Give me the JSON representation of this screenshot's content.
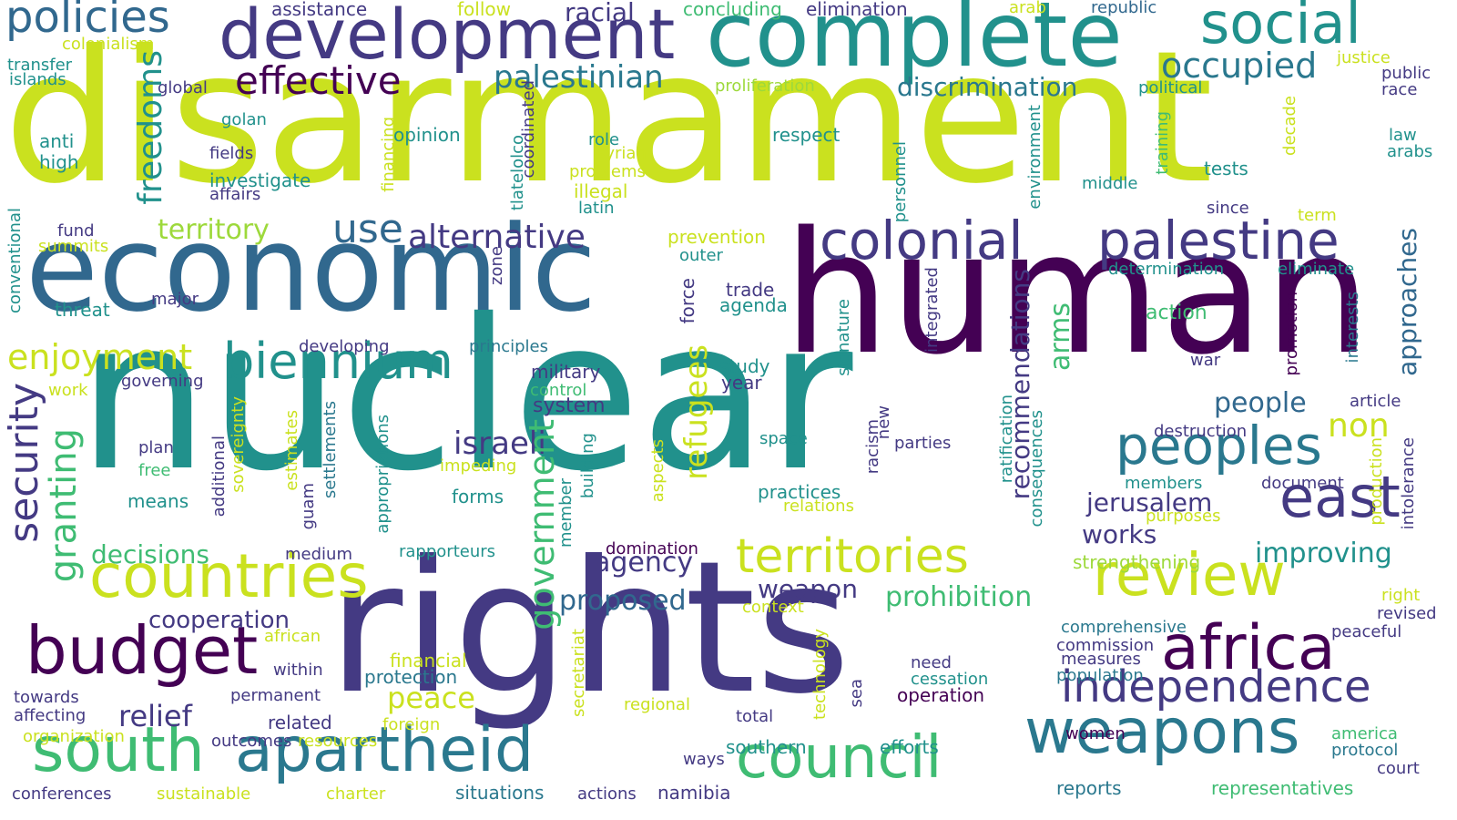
{
  "palette": {
    "y": "#cae11f",
    "g": "#3fbc73",
    "t": "#21918c",
    "b": "#31688e",
    "i": "#443a83",
    "p": "#440154",
    "lg": "#9dd93b",
    "c": "#2a788e"
  },
  "words": [
    {
      "text": "disarmament",
      "color": "y",
      "vertical": false
    },
    {
      "text": "nuclear",
      "color": "t",
      "vertical": false
    },
    {
      "text": "rights",
      "color": "i",
      "vertical": false
    },
    {
      "text": "human",
      "color": "p",
      "vertical": false
    },
    {
      "text": "economic",
      "color": "b",
      "vertical": false
    },
    {
      "text": "complete",
      "color": "t",
      "vertical": false
    },
    {
      "text": "development",
      "color": "i",
      "vertical": false
    },
    {
      "text": "social",
      "color": "t",
      "vertical": false
    },
    {
      "text": "policies",
      "color": "b",
      "vertical": false
    },
    {
      "text": "colonial",
      "color": "i",
      "vertical": false
    },
    {
      "text": "palestine",
      "color": "i",
      "vertical": false
    },
    {
      "text": "countries",
      "color": "y",
      "vertical": false
    },
    {
      "text": "biennium",
      "color": "t",
      "vertical": false
    },
    {
      "text": "peoples",
      "color": "c",
      "vertical": false
    },
    {
      "text": "east",
      "color": "i",
      "vertical": false
    },
    {
      "text": "africa",
      "color": "p",
      "vertical": false
    },
    {
      "text": "review",
      "color": "y",
      "vertical": false
    },
    {
      "text": "budget",
      "color": "p",
      "vertical": false
    },
    {
      "text": "south",
      "color": "g",
      "vertical": false
    },
    {
      "text": "apartheid",
      "color": "c",
      "vertical": false
    },
    {
      "text": "council",
      "color": "g",
      "vertical": false
    },
    {
      "text": "weapons",
      "color": "c",
      "vertical": false
    },
    {
      "text": "independence",
      "color": "i",
      "vertical": false
    },
    {
      "text": "territories",
      "color": "y",
      "vertical": false
    },
    {
      "text": "effective",
      "color": "p",
      "vertical": false
    },
    {
      "text": "occupied",
      "color": "c",
      "vertical": false
    },
    {
      "text": "palestinian",
      "color": "c",
      "vertical": false
    },
    {
      "text": "enjoyment",
      "color": "y",
      "vertical": false
    },
    {
      "text": "use",
      "color": "b",
      "vertical": false
    },
    {
      "text": "alternative",
      "color": "i",
      "vertical": false
    },
    {
      "text": "territory",
      "color": "lg",
      "vertical": false
    },
    {
      "text": "discrimination",
      "color": "c",
      "vertical": false
    },
    {
      "text": "racial",
      "color": "i",
      "vertical": false
    },
    {
      "text": "israeli",
      "color": "i",
      "vertical": false
    },
    {
      "text": "people",
      "color": "b",
      "vertical": false
    },
    {
      "text": "non",
      "color": "y",
      "vertical": false
    },
    {
      "text": "jerusalem",
      "color": "i",
      "vertical": false
    },
    {
      "text": "works",
      "color": "i",
      "vertical": false
    },
    {
      "text": "improving",
      "color": "t",
      "vertical": false
    },
    {
      "text": "decisions",
      "color": "g",
      "vertical": false
    },
    {
      "text": "agency",
      "color": "i",
      "vertical": false
    },
    {
      "text": "proposed",
      "color": "b",
      "vertical": false
    },
    {
      "text": "prohibition",
      "color": "g",
      "vertical": false
    },
    {
      "text": "weapon",
      "color": "i",
      "vertical": false
    },
    {
      "text": "cooperation",
      "color": "i",
      "vertical": false
    },
    {
      "text": "relief",
      "color": "i",
      "vertical": false
    },
    {
      "text": "peace",
      "color": "y",
      "vertical": false
    },
    {
      "text": "military",
      "color": "i",
      "vertical": false
    },
    {
      "text": "system",
      "color": "i",
      "vertical": false
    },
    {
      "text": "assistance",
      "color": "i",
      "vertical": false
    },
    {
      "text": "follow",
      "color": "y",
      "vertical": false
    },
    {
      "text": "concluding",
      "color": "g",
      "vertical": false
    },
    {
      "text": "elimination",
      "color": "i",
      "vertical": false
    },
    {
      "text": "arab",
      "color": "y",
      "vertical": false
    },
    {
      "text": "republic",
      "color": "b",
      "vertical": false
    },
    {
      "text": "colonialism",
      "color": "y",
      "vertical": false
    },
    {
      "text": "transfer",
      "color": "t",
      "vertical": false
    },
    {
      "text": "islands",
      "color": "t",
      "vertical": false
    },
    {
      "text": "justice",
      "color": "y",
      "vertical": false
    },
    {
      "text": "public",
      "color": "i",
      "vertical": false
    },
    {
      "text": "race",
      "color": "i",
      "vertical": false
    },
    {
      "text": "political",
      "color": "t",
      "vertical": false
    },
    {
      "text": "global",
      "color": "i",
      "vertical": false
    },
    {
      "text": "proliferation",
      "color": "lg",
      "vertical": false
    },
    {
      "text": "golan",
      "color": "t",
      "vertical": false
    },
    {
      "text": "anti",
      "color": "t",
      "vertical": false
    },
    {
      "text": "high",
      "color": "t",
      "vertical": false
    },
    {
      "text": "fields",
      "color": "i",
      "vertical": false
    },
    {
      "text": "investigate",
      "color": "t",
      "vertical": false
    },
    {
      "text": "affairs",
      "color": "i",
      "vertical": false
    },
    {
      "text": "opinion",
      "color": "t",
      "vertical": false
    },
    {
      "text": "role",
      "color": "t",
      "vertical": false
    },
    {
      "text": "syrian",
      "color": "y",
      "vertical": false
    },
    {
      "text": "problems",
      "color": "y",
      "vertical": false
    },
    {
      "text": "illegal",
      "color": "y",
      "vertical": false
    },
    {
      "text": "latin",
      "color": "t",
      "vertical": false
    },
    {
      "text": "respect",
      "color": "t",
      "vertical": false
    },
    {
      "text": "middle",
      "color": "t",
      "vertical": false
    },
    {
      "text": "tests",
      "color": "t",
      "vertical": false
    },
    {
      "text": "law",
      "color": "t",
      "vertical": false
    },
    {
      "text": "arabs",
      "color": "t",
      "vertical": false
    },
    {
      "text": "since",
      "color": "i",
      "vertical": false
    },
    {
      "text": "term",
      "color": "y",
      "vertical": false
    },
    {
      "text": "fund",
      "color": "i",
      "vertical": false
    },
    {
      "text": "summits",
      "color": "y",
      "vertical": false
    },
    {
      "text": "prevention",
      "color": "y",
      "vertical": false
    },
    {
      "text": "outer",
      "color": "t",
      "vertical": false
    },
    {
      "text": "determination",
      "color": "t",
      "vertical": false
    },
    {
      "text": "eliminate",
      "color": "t",
      "vertical": false
    },
    {
      "text": "threat",
      "color": "t",
      "vertical": false
    },
    {
      "text": "major",
      "color": "i",
      "vertical": false
    },
    {
      "text": "trade",
      "color": "i",
      "vertical": false
    },
    {
      "text": "agenda",
      "color": "t",
      "vertical": false
    },
    {
      "text": "action",
      "color": "g",
      "vertical": false
    },
    {
      "text": "developing",
      "color": "i",
      "vertical": false
    },
    {
      "text": "principles",
      "color": "c",
      "vertical": false
    },
    {
      "text": "study",
      "color": "t",
      "vertical": false
    },
    {
      "text": "year",
      "color": "i",
      "vertical": false
    },
    {
      "text": "war",
      "color": "i",
      "vertical": false
    },
    {
      "text": "article",
      "color": "i",
      "vertical": false
    },
    {
      "text": "governing",
      "color": "i",
      "vertical": false
    },
    {
      "text": "work",
      "color": "y",
      "vertical": false
    },
    {
      "text": "control",
      "color": "g",
      "vertical": false
    },
    {
      "text": "destruction",
      "color": "i",
      "vertical": false
    },
    {
      "text": "space",
      "color": "t",
      "vertical": false
    },
    {
      "text": "parties",
      "color": "i",
      "vertical": false
    },
    {
      "text": "plan",
      "color": "i",
      "vertical": false
    },
    {
      "text": "free",
      "color": "g",
      "vertical": false
    },
    {
      "text": "means",
      "color": "t",
      "vertical": false
    },
    {
      "text": "impeding",
      "color": "y",
      "vertical": false
    },
    {
      "text": "forms",
      "color": "t",
      "vertical": false
    },
    {
      "text": "practices",
      "color": "t",
      "vertical": false
    },
    {
      "text": "relations",
      "color": "y",
      "vertical": false
    },
    {
      "text": "members",
      "color": "t",
      "vertical": false
    },
    {
      "text": "document",
      "color": "i",
      "vertical": false
    },
    {
      "text": "purposes",
      "color": "y",
      "vertical": false
    },
    {
      "text": "medium",
      "color": "i",
      "vertical": false
    },
    {
      "text": "rapporteurs",
      "color": "t",
      "vertical": false
    },
    {
      "text": "domination",
      "color": "p",
      "vertical": false
    },
    {
      "text": "strengthening",
      "color": "lg",
      "vertical": false
    },
    {
      "text": "context",
      "color": "y",
      "vertical": false
    },
    {
      "text": "right",
      "color": "y",
      "vertical": false
    },
    {
      "text": "revised",
      "color": "i",
      "vertical": false
    },
    {
      "text": "african",
      "color": "y",
      "vertical": false
    },
    {
      "text": "comprehensive",
      "color": "c",
      "vertical": false
    },
    {
      "text": "commission",
      "color": "i",
      "vertical": false
    },
    {
      "text": "peaceful",
      "color": "i",
      "vertical": false
    },
    {
      "text": "need",
      "color": "i",
      "vertical": false
    },
    {
      "text": "measures",
      "color": "i",
      "vertical": false
    },
    {
      "text": "financial",
      "color": "y",
      "vertical": false
    },
    {
      "text": "within",
      "color": "i",
      "vertical": false
    },
    {
      "text": "protection",
      "color": "c",
      "vertical": false
    },
    {
      "text": "cessation",
      "color": "t",
      "vertical": false
    },
    {
      "text": "population",
      "color": "c",
      "vertical": false
    },
    {
      "text": "operation",
      "color": "p",
      "vertical": false
    },
    {
      "text": "towards",
      "color": "i",
      "vertical": false
    },
    {
      "text": "permanent",
      "color": "i",
      "vertical": false
    },
    {
      "text": "regional",
      "color": "y",
      "vertical": false
    },
    {
      "text": "affecting",
      "color": "i",
      "vertical": false
    },
    {
      "text": "related",
      "color": "i",
      "vertical": false
    },
    {
      "text": "total",
      "color": "i",
      "vertical": false
    },
    {
      "text": "foreign",
      "color": "y",
      "vertical": false
    },
    {
      "text": "organization",
      "color": "y",
      "vertical": false
    },
    {
      "text": "outcomes",
      "color": "i",
      "vertical": false
    },
    {
      "text": "resources",
      "color": "y",
      "vertical": false
    },
    {
      "text": "southern",
      "color": "t",
      "vertical": false
    },
    {
      "text": "efforts",
      "color": "t",
      "vertical": false
    },
    {
      "text": "women",
      "color": "p",
      "vertical": false
    },
    {
      "text": "america",
      "color": "g",
      "vertical": false
    },
    {
      "text": "protocol",
      "color": "c",
      "vertical": false
    },
    {
      "text": "court",
      "color": "i",
      "vertical": false
    },
    {
      "text": "ways",
      "color": "i",
      "vertical": false
    },
    {
      "text": "conferences",
      "color": "i",
      "vertical": false
    },
    {
      "text": "sustainable",
      "color": "y",
      "vertical": false
    },
    {
      "text": "charter",
      "color": "y",
      "vertical": false
    },
    {
      "text": "situations",
      "color": "c",
      "vertical": false
    },
    {
      "text": "actions",
      "color": "i",
      "vertical": false
    },
    {
      "text": "namibia",
      "color": "i",
      "vertical": false
    },
    {
      "text": "reports",
      "color": "c",
      "vertical": false
    },
    {
      "text": "representatives",
      "color": "g",
      "vertical": false
    },
    {
      "text": "freedoms",
      "color": "t",
      "vertical": true
    },
    {
      "text": "security",
      "color": "i",
      "vertical": true
    },
    {
      "text": "granting",
      "color": "g",
      "vertical": true
    },
    {
      "text": "government",
      "color": "g",
      "vertical": true
    },
    {
      "text": "refugees",
      "color": "y",
      "vertical": true
    },
    {
      "text": "recommendations",
      "color": "i",
      "vertical": true
    },
    {
      "text": "arms",
      "color": "g",
      "vertical": true
    },
    {
      "text": "approaches",
      "color": "b",
      "vertical": true
    },
    {
      "text": "conventional",
      "color": "t",
      "vertical": true
    },
    {
      "text": "financing",
      "color": "y",
      "vertical": true
    },
    {
      "text": "coordinated",
      "color": "i",
      "vertical": true
    },
    {
      "text": "tlatelolco",
      "color": "t",
      "vertical": true
    },
    {
      "text": "personnel",
      "color": "t",
      "vertical": true
    },
    {
      "text": "environment",
      "color": "t",
      "vertical": true
    },
    {
      "text": "training",
      "color": "g",
      "vertical": true
    },
    {
      "text": "decade",
      "color": "y",
      "vertical": true
    },
    {
      "text": "zone",
      "color": "i",
      "vertical": true
    },
    {
      "text": "force",
      "color": "i",
      "vertical": true
    },
    {
      "text": "integrated",
      "color": "i",
      "vertical": true
    },
    {
      "text": "signature",
      "color": "t",
      "vertical": true
    },
    {
      "text": "promotion",
      "color": "p",
      "vertical": true
    },
    {
      "text": "interests",
      "color": "c",
      "vertical": true
    },
    {
      "text": "sovereignty",
      "color": "y",
      "vertical": true
    },
    {
      "text": "estimates",
      "color": "y",
      "vertical": true
    },
    {
      "text": "settlements",
      "color": "c",
      "vertical": true
    },
    {
      "text": "additional",
      "color": "i",
      "vertical": true
    },
    {
      "text": "guam",
      "color": "i",
      "vertical": true
    },
    {
      "text": "appropriations",
      "color": "t",
      "vertical": true
    },
    {
      "text": "building",
      "color": "t",
      "vertical": true
    },
    {
      "text": "member",
      "color": "t",
      "vertical": true
    },
    {
      "text": "aspects",
      "color": "y",
      "vertical": true
    },
    {
      "text": "racism",
      "color": "i",
      "vertical": true
    },
    {
      "text": "new",
      "color": "i",
      "vertical": true
    },
    {
      "text": "ratification",
      "color": "t",
      "vertical": true
    },
    {
      "text": "consequences",
      "color": "t",
      "vertical": true
    },
    {
      "text": "production",
      "color": "y",
      "vertical": true
    },
    {
      "text": "intolerance",
      "color": "i",
      "vertical": true
    },
    {
      "text": "secretariat",
      "color": "y",
      "vertical": true
    },
    {
      "text": "technology",
      "color": "y",
      "vertical": true
    },
    {
      "text": "sea",
      "color": "i",
      "vertical": true
    }
  ]
}
